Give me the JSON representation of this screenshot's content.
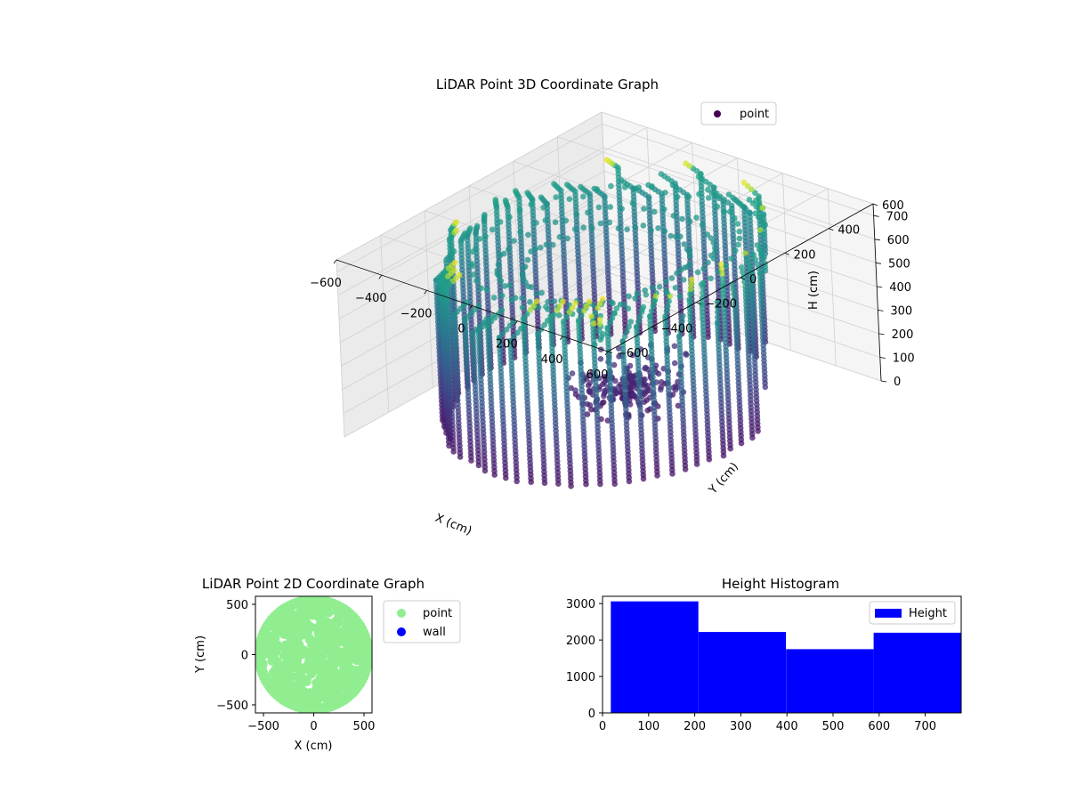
{
  "figure": {
    "title_3d": "LiDAR Point 3D Coordinate Graph",
    "title_2d": "LiDAR Point 2D Coordinate Graph",
    "title_hist": "Height Histogram"
  },
  "chart_data": [
    {
      "type": "scatter",
      "subtype": "3d-scatter",
      "title": "LiDAR Point 3D Coordinate Graph",
      "xlabel": "X (cm)",
      "ylabel": "Y (cm)",
      "zlabel": "H (cm)",
      "xlim": [
        -600,
        600
      ],
      "ylim": [
        -600,
        600
      ],
      "zlim": [
        750,
        0
      ],
      "xticks": [
        "−600",
        "−400",
        "−200",
        "0",
        "200",
        "400",
        "600"
      ],
      "yticks": [
        "−600",
        "−400",
        "−200",
        "0",
        "200",
        "400",
        "600"
      ],
      "zticks": [
        "0",
        "100",
        "200",
        "300",
        "400",
        "500",
        "600",
        "700"
      ],
      "legend": [
        "point"
      ],
      "legend_position": "top-right",
      "colormap": "viridis",
      "grid": true,
      "shape": "cylindrical wall of vertical point columns, radius ~530 cm, height 0-700 cm",
      "wall_radius": 530,
      "wall_height": [
        0,
        700
      ],
      "column_count": 72,
      "sample_points": [
        {
          "x": 380,
          "y": -450,
          "h": 750
        },
        {
          "x": 410,
          "y": -470,
          "h": 740
        },
        {
          "x": 520,
          "y": 380,
          "h": 560
        },
        {
          "x": 560,
          "y": 300,
          "h": 660
        }
      ]
    },
    {
      "type": "scatter",
      "title": "LiDAR Point 2D Coordinate Graph",
      "xlabel": "X (cm)",
      "ylabel": "Y (cm)",
      "xlim": [
        -580,
        580
      ],
      "ylim": [
        -580,
        580
      ],
      "xticks": [
        "−500",
        "0",
        "500"
      ],
      "yticks": [
        "−500",
        "0",
        "500"
      ],
      "series": [
        {
          "name": "point",
          "color": "#90ee90",
          "shape": "filled disc, radius ~530 cm"
        },
        {
          "name": "wall",
          "color": "#0000ff",
          "points": []
        }
      ],
      "legend_position": "outside-right"
    },
    {
      "type": "bar",
      "subtype": "histogram",
      "title": "Height Histogram",
      "bins": [
        [
          18,
          208
        ],
        [
          208,
          398
        ],
        [
          398,
          588
        ],
        [
          588,
          778
        ]
      ],
      "values": [
        3060,
        2220,
        1750,
        2200
      ],
      "xlim": [
        0,
        778
      ],
      "ylim": [
        0,
        3200
      ],
      "xticks": [
        "0",
        "100",
        "200",
        "300",
        "400",
        "500",
        "600",
        "700"
      ],
      "yticks": [
        "0",
        "1000",
        "2000",
        "3000"
      ],
      "legend": [
        "Height"
      ],
      "legend_position": "top-right",
      "color": "#0000ff"
    }
  ]
}
